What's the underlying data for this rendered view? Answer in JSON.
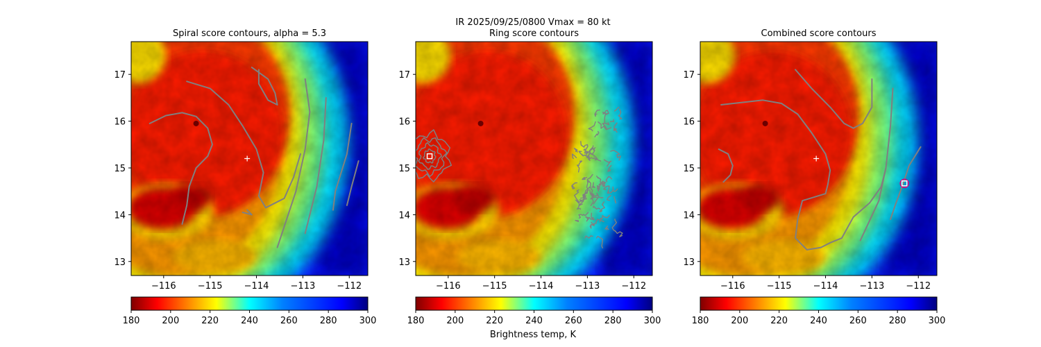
{
  "figure": {
    "suptitle_line1": "IR  2025/09/25/0800    Vmax = 80 kt",
    "colorbar_label": "Brightness temp, K",
    "colormap": "jet",
    "colors": {
      "contour": "#808080",
      "center_cross": "#ffffff",
      "marker_edge_ring": "#ffffff",
      "marker_edge_combined": "#e0007c",
      "dark_core": "#7a0000"
    }
  },
  "chart_data": [
    {
      "type": "heatmap",
      "title": "Spiral score contours, alpha =  5.3",
      "xlim": [
        -116.7,
        -111.6
      ],
      "ylim": [
        12.7,
        17.7
      ],
      "xticks": [
        -116,
        -115,
        -114,
        -113,
        -112
      ],
      "xtick_labels": [
        "−116",
        "−115",
        "−114",
        "−113",
        "−112"
      ],
      "yticks": [
        13,
        14,
        15,
        16,
        17
      ],
      "ytick_labels": [
        "13",
        "14",
        "15",
        "16",
        "17"
      ],
      "storm_center": [
        -115.3,
        15.95
      ],
      "cold_region": {
        "lon_from": -113.0,
        "note": "warm (blue) east of ~-113"
      },
      "center_marker": {
        "lon": -114.2,
        "lat": 15.2,
        "symbol": "+"
      },
      "colorbar": {
        "range": [
          180,
          300
        ],
        "ticks": [
          180,
          200,
          220,
          240,
          260,
          280,
          300
        ]
      },
      "contours": [
        [
          [
            -116.3,
            15.95
          ],
          [
            -115.95,
            16.12
          ],
          [
            -115.6,
            16.18
          ],
          [
            -115.3,
            16.1
          ],
          [
            -115.05,
            15.85
          ],
          [
            -114.95,
            15.5
          ],
          [
            -115.05,
            15.25
          ],
          [
            -115.3,
            15.0
          ],
          [
            -115.45,
            14.6
          ],
          [
            -115.5,
            14.2
          ],
          [
            -115.6,
            13.8
          ]
        ],
        [
          [
            -115.5,
            16.85
          ],
          [
            -115.0,
            16.7
          ],
          [
            -114.6,
            16.35
          ],
          [
            -114.3,
            15.9
          ],
          [
            -114.0,
            15.4
          ],
          [
            -113.85,
            14.9
          ],
          [
            -113.95,
            14.4
          ],
          [
            -113.8,
            14.15
          ],
          [
            -113.4,
            14.35
          ],
          [
            -113.2,
            14.8
          ],
          [
            -113.05,
            15.3
          ]
        ],
        [
          [
            -114.3,
            14.05
          ],
          [
            -114.1,
            14.0
          ],
          [
            -114.2,
            14.1
          ]
        ],
        [
          [
            -114.1,
            17.15
          ],
          [
            -113.75,
            16.9
          ],
          [
            -113.6,
            16.6
          ],
          [
            -113.55,
            16.35
          ],
          [
            -113.75,
            16.45
          ],
          [
            -113.95,
            16.8
          ],
          [
            -113.95,
            17.1
          ]
        ],
        [
          [
            -112.95,
            16.9
          ],
          [
            -112.85,
            16.2
          ],
          [
            -112.95,
            15.4
          ],
          [
            -113.15,
            14.5
          ],
          [
            -113.55,
            13.3
          ]
        ],
        [
          [
            -112.5,
            16.5
          ],
          [
            -112.55,
            15.6
          ],
          [
            -112.7,
            14.6
          ],
          [
            -112.95,
            13.6
          ]
        ],
        [
          [
            -111.95,
            15.95
          ],
          [
            -112.05,
            15.3
          ],
          [
            -112.3,
            14.5
          ],
          [
            -112.35,
            14.1
          ]
        ],
        [
          [
            -111.8,
            15.15
          ],
          [
            -111.95,
            14.6
          ],
          [
            -112.05,
            14.2
          ]
        ]
      ]
    },
    {
      "type": "heatmap",
      "title": "Ring score contours",
      "xlim": [
        -116.7,
        -111.6
      ],
      "ylim": [
        12.7,
        17.7
      ],
      "xticks": [
        -116,
        -115,
        -114,
        -113,
        -112
      ],
      "xtick_labels": [
        "−116",
        "−115",
        "−114",
        "−113",
        "−112"
      ],
      "yticks": [
        13,
        14,
        15,
        16,
        17
      ],
      "ytick_labels": [
        "13",
        "14",
        "15",
        "16",
        "17"
      ],
      "storm_center": [
        -115.3,
        15.95
      ],
      "square_marker": {
        "lon": -116.4,
        "lat": 15.25
      },
      "ring_contours": {
        "lon": -116.4,
        "lat": 15.25,
        "radii_deg": [
          0.12,
          0.22,
          0.32,
          0.42
        ]
      },
      "noisy_region": {
        "lon_from": -113.3,
        "lon_to": -112.3,
        "lat_from": 13.5,
        "lat_to": 16.3
      },
      "colorbar": {
        "range": [
          180,
          300
        ],
        "ticks": [
          180,
          200,
          220,
          240,
          260,
          280,
          300
        ]
      }
    },
    {
      "type": "heatmap",
      "title": "Combined score contours",
      "xlim": [
        -116.7,
        -111.6
      ],
      "ylim": [
        12.7,
        17.7
      ],
      "xticks": [
        -116,
        -115,
        -114,
        -113,
        -112
      ],
      "xtick_labels": [
        "−116",
        "−115",
        "−114",
        "−113",
        "−112"
      ],
      "yticks": [
        13,
        14,
        15,
        16,
        17
      ],
      "ytick_labels": [
        "13",
        "14",
        "15",
        "16",
        "17"
      ],
      "storm_center": [
        -115.3,
        15.95
      ],
      "center_marker": {
        "lon": -114.2,
        "lat": 15.2,
        "symbol": "+"
      },
      "square_marker": {
        "lon": -112.3,
        "lat": 14.67
      },
      "colorbar": {
        "range": [
          180,
          300
        ],
        "ticks": [
          180,
          200,
          220,
          240,
          260,
          280,
          300
        ]
      },
      "contours": [
        [
          [
            -116.25,
            16.35
          ],
          [
            -115.8,
            16.4
          ],
          [
            -115.35,
            16.45
          ],
          [
            -114.95,
            16.38
          ],
          [
            -114.6,
            16.15
          ],
          [
            -114.3,
            15.75
          ],
          [
            -114.0,
            15.3
          ],
          [
            -113.9,
            14.95
          ],
          [
            -113.95,
            14.65
          ],
          [
            -114.0,
            14.45
          ],
          [
            -114.5,
            14.3
          ],
          [
            -114.6,
            13.9
          ],
          [
            -114.65,
            13.5
          ],
          [
            -114.4,
            13.25
          ],
          [
            -114.1,
            13.3
          ],
          [
            -113.9,
            13.4
          ],
          [
            -113.65,
            13.5
          ],
          [
            -113.4,
            13.95
          ],
          [
            -113.05,
            14.25
          ],
          [
            -112.8,
            14.6
          ],
          [
            -112.7,
            15.0
          ]
        ],
        [
          [
            -116.3,
            15.4
          ],
          [
            -116.1,
            15.3
          ],
          [
            -116.0,
            15.05
          ],
          [
            -116.05,
            14.85
          ],
          [
            -116.2,
            14.7
          ]
        ],
        [
          [
            -114.65,
            17.1
          ],
          [
            -114.3,
            16.7
          ],
          [
            -113.9,
            16.3
          ],
          [
            -113.6,
            15.95
          ],
          [
            -113.4,
            15.85
          ],
          [
            -113.2,
            15.95
          ],
          [
            -113.0,
            16.3
          ],
          [
            -113.0,
            16.9
          ]
        ],
        [
          [
            -112.55,
            16.7
          ],
          [
            -112.6,
            15.9
          ],
          [
            -112.7,
            15.0
          ],
          [
            -112.85,
            14.3
          ],
          [
            -113.25,
            13.45
          ]
        ],
        [
          [
            -111.95,
            15.45
          ],
          [
            -112.2,
            15.05
          ],
          [
            -112.35,
            14.6
          ],
          [
            -112.5,
            14.2
          ],
          [
            -112.6,
            13.9
          ]
        ]
      ]
    }
  ]
}
